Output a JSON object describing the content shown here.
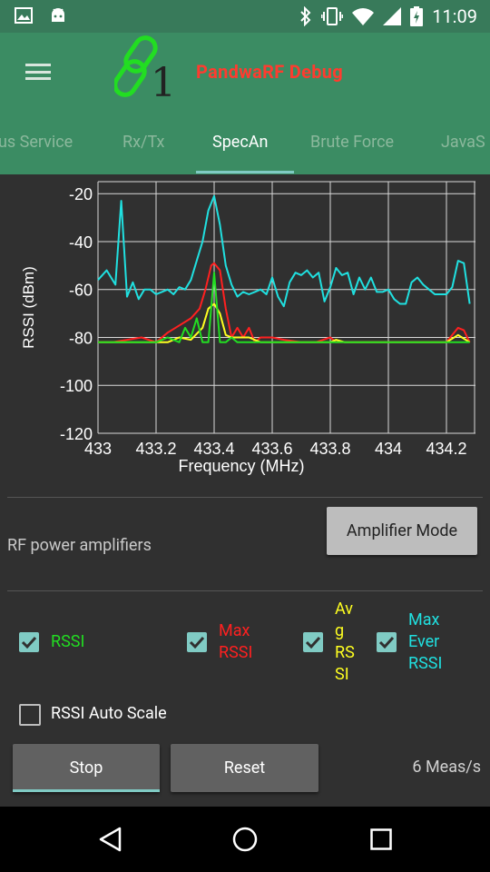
{
  "status": {
    "time": "11:09"
  },
  "app": {
    "title": "PandwaRF  Debug",
    "logo_digit": "1"
  },
  "tabs": [
    {
      "label": "us Service",
      "active": false
    },
    {
      "label": "Rx/Tx",
      "active": false
    },
    {
      "label": "SpecAn",
      "active": true
    },
    {
      "label": "Brute Force",
      "active": false
    },
    {
      "label": "JavaS",
      "active": false
    }
  ],
  "chart_data": {
    "type": "line",
    "xlabel": "Frequency (MHz)",
    "ylabel": "RSSI (dBm)",
    "xlim": [
      433.0,
      434.3
    ],
    "ylim": [
      -120,
      -15
    ],
    "x_tick_labels": [
      "433",
      "433.2",
      "433.4",
      "433.6",
      "433.8",
      "434",
      "434.2"
    ],
    "y_tick_labels": [
      "-20",
      "-40",
      "-60",
      "-80",
      "-100",
      "-120"
    ],
    "series": [
      {
        "name": "Max Ever RSSI",
        "color": "#20e0e0",
        "x": [
          433.0,
          433.03,
          433.06,
          433.08,
          433.1,
          433.12,
          433.14,
          433.16,
          433.18,
          433.2,
          433.22,
          433.24,
          433.26,
          433.28,
          433.3,
          433.32,
          433.34,
          433.36,
          433.38,
          433.4,
          433.42,
          433.44,
          433.46,
          433.48,
          433.5,
          433.52,
          433.54,
          433.56,
          433.58,
          433.6,
          433.62,
          433.64,
          433.66,
          433.68,
          433.7,
          433.72,
          433.74,
          433.76,
          433.78,
          433.8,
          433.82,
          433.84,
          433.86,
          433.88,
          433.9,
          433.92,
          433.94,
          433.96,
          433.98,
          434.0,
          434.02,
          434.04,
          434.06,
          434.08,
          434.1,
          434.12,
          434.14,
          434.16,
          434.18,
          434.2,
          434.22,
          434.24,
          434.26,
          434.28
        ],
        "values": [
          -56,
          -52,
          -58,
          -23,
          -63,
          -57,
          -64,
          -60,
          -60,
          -62,
          -61,
          -60,
          -62,
          -59,
          -60,
          -56,
          -48,
          -40,
          -27,
          -21,
          -33,
          -50,
          -58,
          -63,
          -61,
          -62,
          -61,
          -60,
          -62,
          -55,
          -63,
          -67,
          -57,
          -53,
          -54,
          -52,
          -55,
          -53,
          -65,
          -59,
          -51,
          -54,
          -53,
          -62,
          -55,
          -60,
          -55,
          -61,
          -61,
          -60,
          -64,
          -66,
          -66,
          -57,
          -55,
          -58,
          -60,
          -62,
          -62,
          -62,
          -59,
          -48,
          -49,
          -66
        ]
      },
      {
        "name": "Max RSSI",
        "color": "#ff2020",
        "x": [
          433.0,
          433.05,
          433.1,
          433.15,
          433.2,
          433.24,
          433.28,
          433.32,
          433.35,
          433.37,
          433.39,
          433.4,
          433.42,
          433.44,
          433.46,
          433.48,
          433.5,
          433.52,
          433.54,
          433.56,
          433.6,
          433.64,
          433.7,
          433.75,
          433.8,
          433.82,
          433.85,
          433.9,
          434.0,
          434.1,
          434.2,
          434.24,
          434.26,
          434.28
        ],
        "values": [
          -82,
          -82,
          -81,
          -80,
          -82,
          -78,
          -75,
          -72,
          -68,
          -60,
          -50,
          -49,
          -52,
          -68,
          -80,
          -76,
          -80,
          -76,
          -82,
          -80,
          -80,
          -81,
          -82,
          -82,
          -80,
          -82,
          -82,
          -82,
          -82,
          -82,
          -82,
          -76,
          -77,
          -82
        ]
      },
      {
        "name": "RSSI",
        "color": "#22dd22",
        "x": [
          433.0,
          433.05,
          433.1,
          433.15,
          433.2,
          433.24,
          433.28,
          433.3,
          433.32,
          433.34,
          433.36,
          433.38,
          433.4,
          433.42,
          433.44,
          433.46,
          433.48,
          433.52,
          433.56,
          433.6,
          433.7,
          433.8,
          433.9,
          434.0,
          434.1,
          434.2,
          434.28
        ],
        "values": [
          -82,
          -82,
          -82,
          -82,
          -82,
          -80,
          -82,
          -76,
          -80,
          -72,
          -82,
          -82,
          -53,
          -82,
          -82,
          -80,
          -82,
          -82,
          -82,
          -82,
          -82,
          -82,
          -82,
          -82,
          -82,
          -82,
          -82
        ]
      },
      {
        "name": "Avg RSSI",
        "color": "#ffff20",
        "x": [
          433.0,
          433.05,
          433.1,
          433.15,
          433.2,
          433.24,
          433.28,
          433.32,
          433.36,
          433.38,
          433.4,
          433.42,
          433.44,
          433.46,
          433.48,
          433.52,
          433.56,
          433.6,
          433.7,
          433.8,
          433.82,
          433.85,
          433.9,
          434.0,
          434.1,
          434.2,
          434.24,
          434.28
        ],
        "values": [
          -82,
          -82,
          -82,
          -82,
          -82,
          -82,
          -80,
          -81,
          -76,
          -68,
          -66,
          -70,
          -79,
          -80,
          -80,
          -80,
          -82,
          -82,
          -82,
          -82,
          -81,
          -82,
          -82,
          -82,
          -82,
          -82,
          -79,
          -82
        ]
      }
    ]
  },
  "amplifiers": {
    "label": "RF power amplifiers",
    "button": "Amplifier Mode"
  },
  "checkboxes": [
    {
      "label": "RSSI",
      "color": "#22dd22",
      "checked": true
    },
    {
      "label": "Max\nRSSI",
      "color": "#ff2020",
      "checked": true
    },
    {
      "label": "Av\ng\nRS\nSI",
      "color": "#ffff20",
      "checked": true
    },
    {
      "label": "Max\nEver\nRSSI",
      "color": "#20e0e0",
      "checked": true
    }
  ],
  "autoscale": {
    "label": "RSSI Auto Scale",
    "checked": false
  },
  "buttons": {
    "stop": "Stop",
    "reset": "Reset"
  },
  "meas_rate": "6 Meas/s"
}
